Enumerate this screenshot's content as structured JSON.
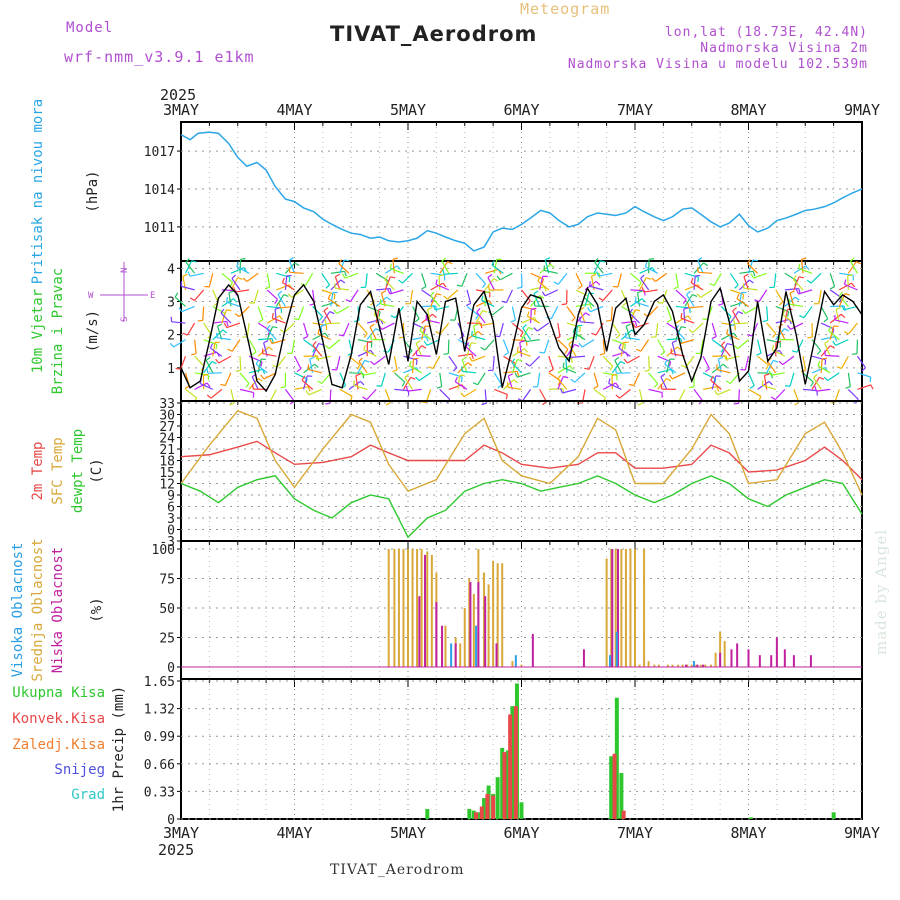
{
  "header": {
    "model_label": "Model",
    "model_name": "wrf-nmm_v3.9.1 e1km",
    "product": "Meteogram",
    "station": "TIVAT_Aerodrom",
    "location": "lon,lat (18.73E, 42.4N)",
    "elevation": "Nadmorska Visina 2m",
    "model_elevation": "Nadmorska Visina u modelu 102.539m"
  },
  "footer_station": "TIVAT_Aerodrom",
  "signature": "made by Angel",
  "colors": {
    "pressure": "#2aa6e6",
    "t2m": "#e84848",
    "sfc": "#d8a838",
    "dewpt": "#2ec82e",
    "high_cloud": "#2a9ee6",
    "mid_cloud": "#d8a838",
    "low_cloud": "#c020a0",
    "total_rain": "#2ec82e",
    "conv_rain": "#e84848",
    "frz_rain": "#f08030",
    "snow": "#5050e0",
    "hail": "#30c8c8"
  },
  "chart_data": [
    {
      "type": "line",
      "panel": "pressure",
      "x_axis": {
        "year": "2025",
        "tick_labels": [
          "3MAY",
          "4MAY",
          "5MAY",
          "6MAY",
          "7MAY",
          "8MAY",
          "9MAY"
        ],
        "range_days": [
          0,
          6
        ]
      },
      "ylabel": "Pritisak na nivou mora",
      "yunit": "(hPa)",
      "yticks": [
        1011,
        1014,
        1017
      ],
      "ylim": [
        1008.3,
        1019.3
      ],
      "series": [
        {
          "color": "#2aa6e6",
          "x": [
            0,
            0.08,
            0.15,
            0.25,
            0.33,
            0.42,
            0.5,
            0.58,
            0.67,
            0.75,
            0.83,
            0.92,
            1.0,
            1.08,
            1.17,
            1.25,
            1.33,
            1.42,
            1.5,
            1.58,
            1.67,
            1.75,
            1.83,
            1.92,
            2.0,
            2.08,
            2.17,
            2.25,
            2.33,
            2.42,
            2.5,
            2.58,
            2.67,
            2.75,
            2.83,
            2.92,
            3.0,
            3.08,
            3.17,
            3.25,
            3.33,
            3.42,
            3.5,
            3.58,
            3.67,
            3.75,
            3.83,
            3.92,
            4.0,
            4.08,
            4.17,
            4.25,
            4.33,
            4.42,
            4.5,
            4.58,
            4.67,
            4.75,
            4.83,
            4.92,
            5.0,
            5.08,
            5.17,
            5.25,
            5.33,
            5.42,
            5.5,
            5.58,
            5.67,
            5.75,
            5.83,
            5.92,
            6.0
          ],
          "y": [
            1018.3,
            1017.9,
            1018.4,
            1018.5,
            1018.4,
            1017.6,
            1016.5,
            1015.8,
            1016.1,
            1015.5,
            1014.2,
            1013.2,
            1013.0,
            1012.5,
            1012.2,
            1011.6,
            1011.2,
            1010.8,
            1010.5,
            1010.4,
            1010.1,
            1010.2,
            1009.9,
            1009.8,
            1009.9,
            1010.1,
            1010.7,
            1010.5,
            1010.2,
            1009.9,
            1009.7,
            1009.1,
            1009.4,
            1010.6,
            1010.9,
            1010.8,
            1011.2,
            1011.7,
            1012.3,
            1012.1,
            1011.5,
            1011.0,
            1011.2,
            1011.8,
            1012.1,
            1012.0,
            1011.9,
            1012.1,
            1012.6,
            1012.2,
            1011.8,
            1011.5,
            1011.8,
            1012.4,
            1012.5,
            1012.0,
            1011.4,
            1011.0,
            1011.3,
            1012.0,
            1011.1,
            1010.6,
            1010.9,
            1011.5,
            1011.7,
            1012.0,
            1012.3,
            1012.4,
            1012.6,
            1012.9,
            1013.3,
            1013.7,
            1014.0
          ]
        }
      ]
    },
    {
      "type": "line",
      "panel": "wind",
      "ylabel": "10m Vjetar",
      "ylabel2": "Brzina i Pravac",
      "yunit": "(m/s)",
      "compass": {
        "west": "W",
        "east": "E",
        "north": "N",
        "south": "S"
      },
      "yticks": [
        1,
        2,
        3,
        4
      ],
      "ylim": [
        0,
        4.1
      ],
      "series": [
        {
          "color": "#000000",
          "x": [
            0,
            0.08,
            0.17,
            0.25,
            0.33,
            0.42,
            0.5,
            0.58,
            0.67,
            0.75,
            0.83,
            0.92,
            1.0,
            1.08,
            1.17,
            1.25,
            1.33,
            1.42,
            1.5,
            1.58,
            1.67,
            1.75,
            1.83,
            1.92,
            2.0,
            2.08,
            2.17,
            2.25,
            2.33,
            2.42,
            2.5,
            2.58,
            2.67,
            2.75,
            2.83,
            2.92,
            3.0,
            3.08,
            3.17,
            3.25,
            3.33,
            3.42,
            3.5,
            3.58,
            3.67,
            3.75,
            3.83,
            3.92,
            4.0,
            4.08,
            4.17,
            4.25,
            4.33,
            4.42,
            4.5,
            4.58,
            4.67,
            4.75,
            4.83,
            4.92,
            5.0,
            5.08,
            5.17,
            5.25,
            5.33,
            5.42,
            5.5,
            5.58,
            5.67,
            5.75,
            5.83,
            5.92,
            6.0
          ],
          "y": [
            1.0,
            0.4,
            0.6,
            1.8,
            3.1,
            3.5,
            3.2,
            2.0,
            0.6,
            0.3,
            0.8,
            2.2,
            3.2,
            3.5,
            3.0,
            1.8,
            0.5,
            0.4,
            1.4,
            2.9,
            3.3,
            2.2,
            1.1,
            2.8,
            1.2,
            3.0,
            2.6,
            1.4,
            3.0,
            3.1,
            1.5,
            2.9,
            3.3,
            2.4,
            0.4,
            1.6,
            2.8,
            3.2,
            3.1,
            2.4,
            1.6,
            1.2,
            2.6,
            3.4,
            2.9,
            1.5,
            2.8,
            3.1,
            2.0,
            2.3,
            3.0,
            3.2,
            2.7,
            1.4,
            0.6,
            1.3,
            3.0,
            3.4,
            2.4,
            0.6,
            0.9,
            3.0,
            1.2,
            1.6,
            3.3,
            2.0,
            0.5,
            1.8,
            3.3,
            2.9,
            3.2,
            3.0,
            2.6
          ]
        }
      ]
    },
    {
      "type": "line",
      "panel": "temperature",
      "ylabel": "2m Temp",
      "ylabel2": "SFC Temp",
      "ylabel3": "dewpt Temp",
      "yunit": "(C)",
      "yticks": [
        -3,
        0,
        3,
        6,
        9,
        12,
        15,
        18,
        21,
        24,
        27,
        30,
        33
      ],
      "ylim": [
        -3,
        33
      ],
      "series": [
        {
          "name": "2m Temp",
          "color": "#e84848",
          "x": [
            0,
            0.25,
            0.5,
            0.67,
            0.83,
            1.0,
            1.25,
            1.5,
            1.67,
            1.83,
            2.0,
            2.25,
            2.5,
            2.67,
            2.83,
            3.0,
            3.25,
            3.5,
            3.67,
            3.83,
            4.0,
            4.25,
            4.5,
            4.67,
            4.83,
            5.0,
            5.25,
            5.5,
            5.67,
            5.83,
            6.0
          ],
          "y": [
            19,
            19.5,
            21.5,
            23,
            20,
            17,
            17.5,
            19,
            22,
            20,
            18,
            18,
            18,
            22,
            20,
            17,
            16,
            17,
            20,
            20,
            16,
            16,
            17,
            22,
            20,
            15,
            15.5,
            18,
            21.5,
            18,
            13
          ]
        },
        {
          "name": "SFC Temp",
          "color": "#d8a838",
          "x": [
            0,
            0.25,
            0.5,
            0.67,
            0.83,
            1.0,
            1.25,
            1.5,
            1.67,
            1.83,
            2.0,
            2.25,
            2.5,
            2.67,
            2.83,
            3.0,
            3.25,
            3.5,
            3.67,
            3.83,
            4.0,
            4.25,
            4.5,
            4.67,
            4.83,
            5.0,
            5.25,
            5.5,
            5.67,
            5.83,
            6.0
          ],
          "y": [
            12,
            22,
            31,
            29,
            18,
            11,
            21,
            30,
            28,
            17,
            10,
            13,
            25,
            29,
            18,
            14,
            12,
            19,
            29,
            26,
            12,
            12,
            21,
            30,
            25,
            12,
            13,
            25,
            28,
            20,
            9
          ]
        },
        {
          "name": "dewpt Temp",
          "color": "#2ec82e",
          "x": [
            0,
            0.17,
            0.33,
            0.5,
            0.67,
            0.83,
            1.0,
            1.17,
            1.33,
            1.5,
            1.67,
            1.83,
            2.0,
            2.17,
            2.33,
            2.5,
            2.67,
            2.83,
            3.0,
            3.17,
            3.33,
            3.5,
            3.67,
            3.83,
            4.0,
            4.17,
            4.33,
            4.5,
            4.67,
            4.83,
            5.0,
            5.17,
            5.33,
            5.5,
            5.67,
            5.83,
            6.0
          ],
          "y": [
            12,
            10,
            7,
            11,
            13,
            14,
            8,
            5,
            3,
            7,
            9,
            8,
            -2,
            3,
            5,
            10,
            12,
            13,
            12,
            10,
            11,
            12,
            14,
            12,
            9,
            7,
            9,
            12,
            14,
            12,
            8,
            6,
            9,
            11,
            13,
            12,
            4
          ]
        }
      ]
    },
    {
      "type": "bar",
      "panel": "cloud",
      "ylabel": "Visoka Oblacnost",
      "ylabel2": "Srednja Oblacnost",
      "ylabel3": "Niska Oblacnost",
      "yunit": "(%)",
      "yticks": [
        0,
        25,
        50,
        75,
        100
      ],
      "ylim": [
        0,
        100
      ],
      "series": [
        {
          "name": "Srednja Oblacnost",
          "color": "#d8a838",
          "x": [
            1.83,
            1.88,
            1.92,
            1.96,
            2.0,
            2.04,
            2.08,
            2.12,
            2.17,
            2.21,
            2.25,
            2.33,
            2.42,
            2.46,
            2.5,
            2.54,
            2.58,
            2.62,
            2.67,
            2.71,
            2.75,
            2.79,
            2.83,
            2.92,
            3.0,
            3.75,
            3.79,
            3.83,
            3.88,
            3.92,
            3.96,
            4.0,
            4.04,
            4.08,
            4.12,
            4.17,
            4.21,
            4.29,
            4.33,
            4.38,
            4.42,
            4.46,
            4.5,
            4.54,
            4.58,
            4.62,
            4.67,
            4.71,
            4.75,
            4.79
          ],
          "y": [
            100,
            100,
            100,
            100,
            100,
            100,
            100,
            100,
            98,
            95,
            80,
            35,
            25,
            20,
            50,
            75,
            62,
            100,
            80,
            70,
            90,
            88,
            88,
            5,
            2,
            92,
            100,
            100,
            100,
            100,
            100,
            100,
            2,
            100,
            5,
            2,
            2,
            2,
            2,
            2,
            2,
            2,
            2,
            2,
            2,
            2,
            2,
            12,
            30,
            22
          ]
        },
        {
          "name": "Niska Oblacnost",
          "color": "#c020a0",
          "x": [
            2.1,
            2.15,
            2.25,
            2.3,
            2.42,
            2.55,
            2.62,
            2.68,
            2.78,
            3.1,
            3.55,
            3.8,
            3.85,
            4.45,
            4.55,
            4.6,
            4.75,
            4.85,
            4.9,
            5.0,
            5.1,
            5.2,
            5.25,
            5.32,
            5.4,
            5.55
          ],
          "y": [
            60,
            95,
            55,
            35,
            20,
            72,
            72,
            60,
            20,
            28,
            15,
            100,
            100,
            2,
            2,
            2,
            12,
            15,
            20,
            15,
            10,
            10,
            25,
            15,
            10,
            10
          ]
        },
        {
          "name": "Visoka Oblacnost",
          "color": "#2a9ee6",
          "x": [
            2.38,
            2.6,
            2.95,
            3.78,
            3.84,
            4.52
          ],
          "y": [
            20,
            35,
            10,
            10,
            30,
            5
          ]
        }
      ]
    },
    {
      "type": "bar",
      "panel": "precip",
      "ylabel": "1hr Precip",
      "yunit": "(mm)",
      "legend": [
        "Ukupna Kisa",
        "Konvek.Kisa",
        "Zaledj.Kisa",
        "Snijeg",
        "Grad"
      ],
      "yticks": [
        0,
        0.33,
        0.66,
        0.99,
        1.32,
        1.65
      ],
      "ylim": [
        0,
        1.65
      ],
      "series": [
        {
          "name": "Ukupna Kisa",
          "color": "#2ec82e",
          "x": [
            2.17,
            2.54,
            2.58,
            2.62,
            2.67,
            2.71,
            2.75,
            2.79,
            2.83,
            2.88,
            2.92,
            2.96,
            3.0,
            3.79,
            3.84,
            3.88,
            5.02,
            5.75
          ],
          "y": [
            0.12,
            0.12,
            0.1,
            0.08,
            0.25,
            0.4,
            0.3,
            0.5,
            0.85,
            0.82,
            1.35,
            1.62,
            0.2,
            0.75,
            1.45,
            0.55,
            0.02,
            0.08
          ]
        },
        {
          "name": "Konvek.Kisa",
          "color": "#e84848",
          "x": [
            2.6,
            2.65,
            2.7,
            2.75,
            2.85,
            2.9,
            2.95,
            3.82,
            3.9
          ],
          "y": [
            0.08,
            0.15,
            0.3,
            0.28,
            0.8,
            1.25,
            1.35,
            0.78,
            0.1
          ]
        }
      ]
    }
  ]
}
